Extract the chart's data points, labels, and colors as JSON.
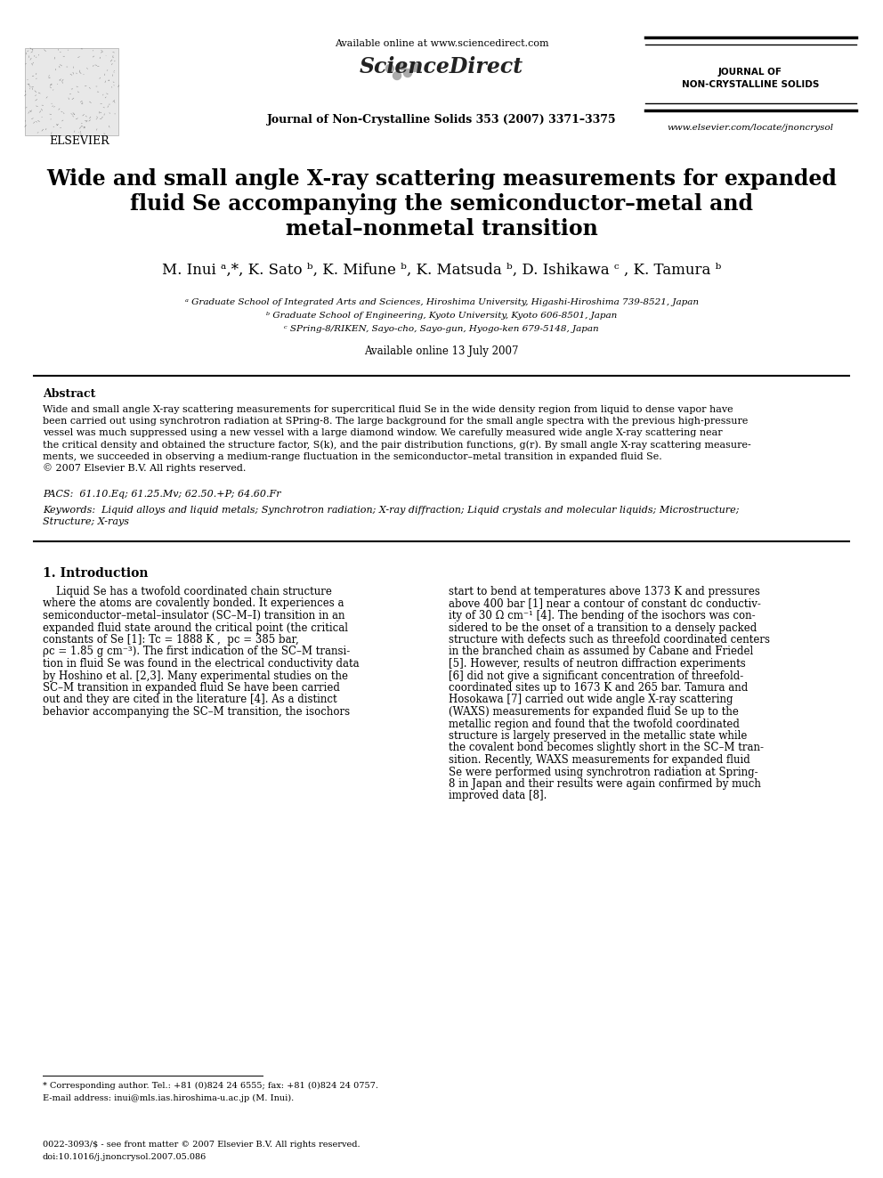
{
  "title_line1": "Wide and small angle X-ray scattering measurements for expanded",
  "title_line2": "fluid Se accompanying the semiconductor–metal and",
  "title_line3": "metal–nonmetal transition",
  "authors_plain": "M. Inui a,*, K. Sato b, K. Mifune b, K. Matsuda b, D. Ishikawa c , K. Tamura b",
  "affil_a": "ᵃ Graduate School of Integrated Arts and Sciences, Hiroshima University, Higashi-Hiroshima 739-8521, Japan",
  "affil_b": "ᵇ Graduate School of Engineering, Kyoto University, Kyoto 606-8501, Japan",
  "affil_c": "ᶜ SPring-8/RIKEN, Sayo-cho, Sayo-gun, Hyogo-ken 679-5148, Japan",
  "available_online": "Available online 13 July 2007",
  "journal_name": "Journal of Non-Crystalline Solids 353 (2007) 3371–3375",
  "available_sciencedirect": "Available online at www.sciencedirect.com",
  "journal_right1": "JOURNAL OF",
  "journal_right2": "NON-CRYSTALLINE SOLIDS",
  "website": "www.elsevier.com/locate/jnoncrysol",
  "abstract_title": "Abstract",
  "pacs": "PACS:  61.10.Eq; 61.25.Mv; 62.50.+P; 64.60.Fr",
  "keywords_line1": "Keywords:  Liquid alloys and liquid metals; Synchrotron radiation; X-ray diffraction; Liquid crystals and molecular liquids; Microstructure;",
  "keywords_line2": "Structure; X-rays",
  "section1_title": "1. Introduction",
  "footnote_corresponding": "* Corresponding author. Tel.: +81 (0)824 24 6555; fax: +81 (0)824 24 0757.",
  "footnote_email": "E-mail address: inui@mls.ias.hiroshima-u.ac.jp (M. Inui).",
  "footer_issn": "0022-3093/$ - see front matter © 2007 Elsevier B.V. All rights reserved.",
  "footer_doi": "doi:10.1016/j.jnoncrysol.2007.05.086",
  "abstract_lines": [
    "Wide and small angle X-ray scattering measurements for supercritical fluid Se in the wide density region from liquid to dense vapor have",
    "been carried out using synchrotron radiation at SPring-8. The large background for the small angle spectra with the previous high-pressure",
    "vessel was much suppressed using a new vessel with a large diamond window. We carefully measured wide angle X-ray scattering near",
    "the critical density and obtained the structure factor, S(k), and the pair distribution functions, g(r). By small angle X-ray scattering measure-",
    "ments, we succeeded in observing a medium-range fluctuation in the semiconductor–metal transition in expanded fluid Se.",
    "© 2007 Elsevier B.V. All rights reserved."
  ],
  "col1_lines": [
    "    Liquid Se has a twofold coordinated chain structure",
    "where the atoms are covalently bonded. It experiences a",
    "semiconductor–metal–insulator (SC–M–I) transition in an",
    "expanded fluid state around the critical point (the critical",
    "constants of Se [1]: Tc = 1888 K ,  pc = 385 bar,",
    "ρc = 1.85 g cm⁻³). The first indication of the SC–M transi-",
    "tion in fluid Se was found in the electrical conductivity data",
    "by Hoshino et al. [2,3]. Many experimental studies on the",
    "SC–M transition in expanded fluid Se have been carried",
    "out and they are cited in the literature [4]. As a distinct",
    "behavior accompanying the SC–M transition, the isochors"
  ],
  "col2_lines": [
    "start to bend at temperatures above 1373 K and pressures",
    "above 400 bar [1] near a contour of constant dc conductiv-",
    "ity of 30 Ω cm⁻¹ [4]. The bending of the isochors was con-",
    "sidered to be the onset of a transition to a densely packed",
    "structure with defects such as threefold coordinated centers",
    "in the branched chain as assumed by Cabane and Friedel",
    "[5]. However, results of neutron diffraction experiments",
    "[6] did not give a significant concentration of threefold-",
    "coordinated sites up to 1673 K and 265 bar. Tamura and",
    "Hosokawa [7] carried out wide angle X-ray scattering",
    "(WAXS) measurements for expanded fluid Se up to the",
    "metallic region and found that the twofold coordinated",
    "structure is largely preserved in the metallic state while",
    "the covalent bond becomes slightly short in the SC–M tran-",
    "sition. Recently, WAXS measurements for expanded fluid",
    "Se were performed using synchrotron radiation at Spring-",
    "8 in Japan and their results were again confirmed by much",
    "improved data [8]."
  ]
}
